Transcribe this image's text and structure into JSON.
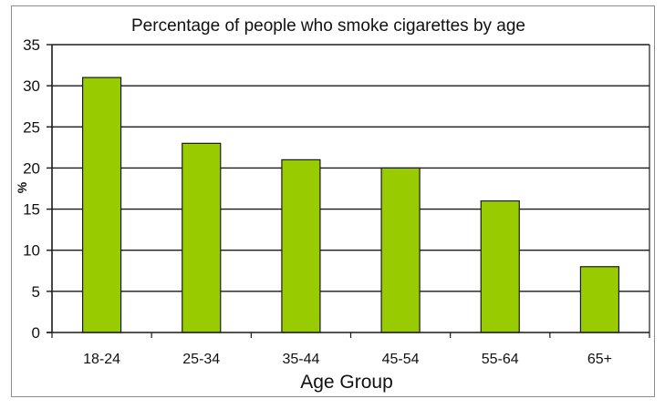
{
  "chart_data": {
    "type": "bar",
    "title": "Percentage of people who smoke cigarettes by age",
    "xlabel": "Age Group",
    "ylabel": "%",
    "categories": [
      "18-24",
      "25-34",
      "35-44",
      "45-54",
      "55-64",
      "65+"
    ],
    "values": [
      31,
      23,
      21,
      20,
      16,
      8
    ],
    "ylim": [
      0,
      35
    ],
    "yticks": [
      0,
      5,
      10,
      15,
      20,
      25,
      30,
      35
    ],
    "grid": true,
    "legend": "none",
    "colors": {
      "bar_fill": "#99cc00",
      "bar_stroke": "#1a1a1a",
      "grid": "#1a1a1a",
      "frame": "#8c8c8c"
    }
  }
}
